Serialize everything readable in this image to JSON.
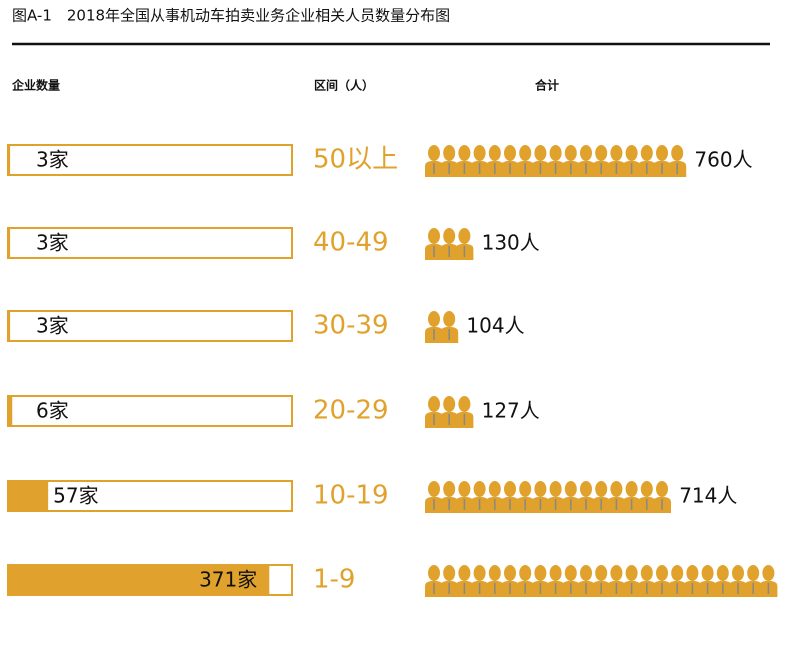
{
  "chart_data": {
    "type": "icon-bar",
    "title": "图A-1　2018年全国从事机动车拍卖业务企业相关人员数量分布图",
    "column_headers": [
      "企业数量",
      "区间（人）",
      "合计"
    ],
    "categories": [
      "50以上",
      "40-49",
      "30-39",
      "20-29",
      "10-19",
      "1-9"
    ],
    "color": "#e0a22c",
    "companies": {
      "values": [
        3,
        3,
        3,
        6,
        57,
        371
      ],
      "value_labels": [
        "3家",
        "3家",
        "3家",
        "6家",
        "57家",
        "371家"
      ]
    },
    "people": {
      "values": [
        760,
        130,
        104,
        127,
        714,
        1030
      ],
      "value_labels": [
        "760人",
        "130人",
        "104人",
        "127人",
        "714人",
        null
      ]
    }
  }
}
